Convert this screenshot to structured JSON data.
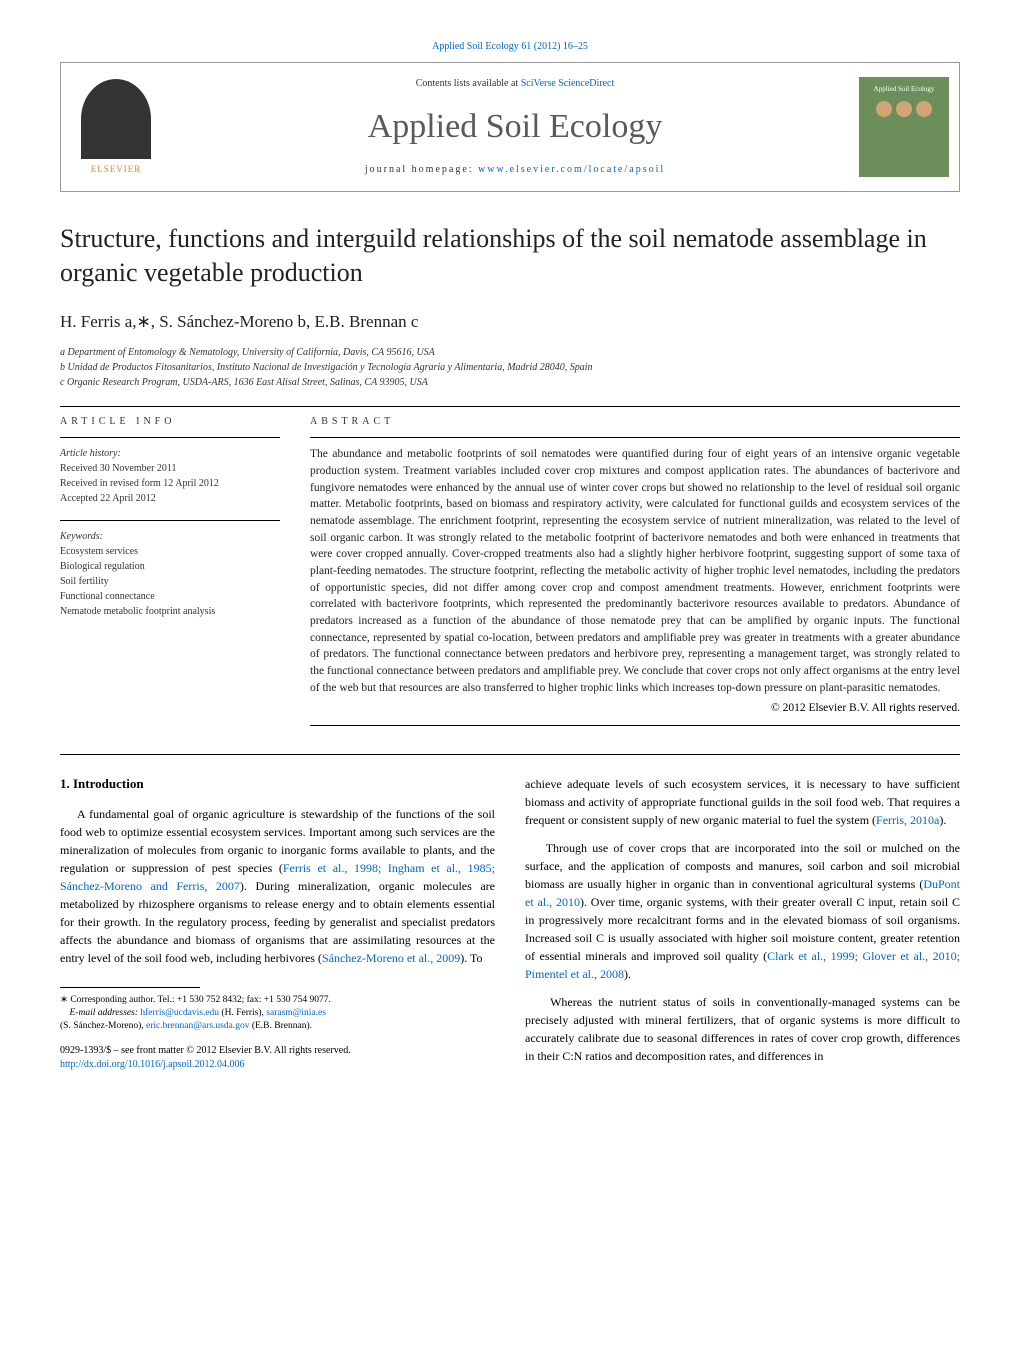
{
  "top_header": "Applied Soil Ecology 61 (2012) 16–25",
  "header": {
    "contents_prefix": "Contents lists available at ",
    "sciverse_link": "SciVerse ScienceDirect",
    "journal_name": "Applied Soil Ecology",
    "homepage_prefix": "journal homepage: ",
    "homepage_url": "www.elsevier.com/locate/apsoil",
    "publisher": "ELSEVIER",
    "cover_title": "Applied Soil Ecology"
  },
  "title": "Structure, functions and interguild relationships of the soil nematode assemblage in organic vegetable production",
  "authors": "H. Ferris a,∗, S. Sánchez-Moreno b, E.B. Brennan c",
  "affiliations": {
    "a": "a Department of Entomology & Nematology, University of California, Davis, CA 95616, USA",
    "b": "b Unidad de Productos Fitosanitarios, Instituto Nacional de Investigación y Tecnología Agraria y Alimentaria, Madrid 28040, Spain",
    "c": "c Organic Research Program, USDA-ARS, 1636 East Alisal Street, Salinas, CA 93905, USA"
  },
  "article_info": {
    "heading": "ARTICLE INFO",
    "history_label": "Article history:",
    "received": "Received 30 November 2011",
    "revised": "Received in revised form 12 April 2012",
    "accepted": "Accepted 22 April 2012",
    "keywords_label": "Keywords:",
    "keywords": [
      "Ecosystem services",
      "Biological regulation",
      "Soil fertility",
      "Functional connectance",
      "Nematode metabolic footprint analysis"
    ]
  },
  "abstract": {
    "heading": "ABSTRACT",
    "text": "The abundance and metabolic footprints of soil nematodes were quantified during four of eight years of an intensive organic vegetable production system. Treatment variables included cover crop mixtures and compost application rates. The abundances of bacterivore and fungivore nematodes were enhanced by the annual use of winter cover crops but showed no relationship to the level of residual soil organic matter. Metabolic footprints, based on biomass and respiratory activity, were calculated for functional guilds and ecosystem services of the nematode assemblage. The enrichment footprint, representing the ecosystem service of nutrient mineralization, was related to the level of soil organic carbon. It was strongly related to the metabolic footprint of bacterivore nematodes and both were enhanced in treatments that were cover cropped annually. Cover-cropped treatments also had a slightly higher herbivore footprint, suggesting support of some taxa of plant-feeding nematodes. The structure footprint, reflecting the metabolic activity of higher trophic level nematodes, including the predators of opportunistic species, did not differ among cover crop and compost amendment treatments. However, enrichment footprints were correlated with bacterivore footprints, which represented the predominantly bacterivore resources available to predators. Abundance of predators increased as a function of the abundance of those nematode prey that can be amplified by organic inputs. The functional connectance, represented by spatial co-location, between predators and amplifiable prey was greater in treatments with a greater abundance of predators. The functional connectance between predators and herbivore prey, representing a management target, was strongly related to the functional connectance between predators and amplifiable prey. We conclude that cover crops not only affect organisms at the entry level of the web but that resources are also transferred to higher trophic links which increases top-down pressure on plant-parasitic nematodes.",
    "copyright": "© 2012 Elsevier B.V. All rights reserved."
  },
  "body": {
    "intro_heading": "1. Introduction",
    "para1_part1": "A fundamental goal of organic agriculture is stewardship of the functions of the soil food web to optimize essential ecosystem services. Important among such services are the mineralization of molecules from organic to inorganic forms available to plants, and the regulation or suppression of pest species (",
    "ref1": "Ferris et al., 1998; Ingham et al., 1985; Sánchez-Moreno and Ferris, 2007",
    "para1_part2": "). During mineralization, organic molecules are metabolized by rhizosphere organisms to release energy and to obtain elements essential for their growth. In the regulatory process, feeding by generalist and specialist predators affects the abundance and biomass of organisms that are assimilating resources at the entry level of the soil food web, including herbivores (",
    "ref2": "Sánchez-Moreno et al., 2009",
    "para1_part3": "). To",
    "para2_part1": "achieve adequate levels of such ecosystem services, it is necessary to have sufficient biomass and activity of appropriate functional guilds in the soil food web. That requires a frequent or consistent supply of new organic material to fuel the system (",
    "ref3": "Ferris, 2010a",
    "para2_part2": ").",
    "para3_part1": "Through use of cover crops that are incorporated into the soil or mulched on the surface, and the application of composts and manures, soil carbon and soil microbial biomass are usually higher in organic than in conventional agricultural systems (",
    "ref4": "DuPont et al., 2010",
    "para3_part2": "). Over time, organic systems, with their greater overall C input, retain soil C in progressively more recalcitrant forms and in the elevated biomass of soil organisms. Increased soil C is usually associated with higher soil moisture content, greater retention of essential minerals and improved soil quality (",
    "ref5": "Clark et al., 1999; Glover et al., 2010; Pimentel et al., 2008",
    "para3_part3": ").",
    "para4": "Whereas the nutrient status of soils in conventionally-managed systems can be precisely adjusted with mineral fertilizers, that of organic systems is more difficult to accurately calibrate due to seasonal differences in rates of cover crop growth, differences in their C:N ratios and decomposition rates, and differences in"
  },
  "footnotes": {
    "corresponding": "∗ Corresponding author. Tel.: +1 530 752 8432; fax: +1 530 754 9077.",
    "email_label": "E-mail addresses: ",
    "email1": "hferris@ucdavis.edu",
    "email1_name": " (H. Ferris), ",
    "email2": "sarasm@inia.es",
    "email2_name": "(S. Sánchez-Moreno), ",
    "email3": "eric.brennan@ars.usda.gov",
    "email3_name": " (E.B. Brennan)."
  },
  "doi": {
    "line1": "0929-1393/$ – see front matter © 2012 Elsevier B.V. All rights reserved.",
    "link": "http://dx.doi.org/10.1016/j.apsoil.2012.04.006"
  }
}
